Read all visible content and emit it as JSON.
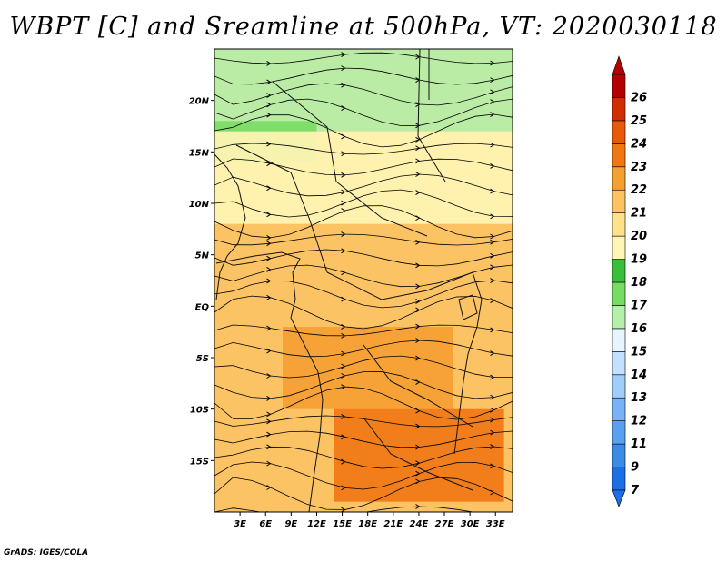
{
  "chart_data": {
    "type": "heatmap",
    "title": "WBPT [C] and Sreamline at 500hPa, VT: 2020030118",
    "variable": "WBPT [C]",
    "overlay": "Streamline",
    "level": "500hPa",
    "valid_time": "2020030118",
    "x_axis": {
      "range": [
        0,
        35
      ],
      "ticks": [
        {
          "value": 3,
          "label": "3E"
        },
        {
          "value": 6,
          "label": "6E"
        },
        {
          "value": 9,
          "label": "9E"
        },
        {
          "value": 12,
          "label": "12E"
        },
        {
          "value": 15,
          "label": "15E"
        },
        {
          "value": 18,
          "label": "18E"
        },
        {
          "value": 21,
          "label": "21E"
        },
        {
          "value": 24,
          "label": "24E"
        },
        {
          "value": 27,
          "label": "27E"
        },
        {
          "value": 30,
          "label": "30E"
        },
        {
          "value": 33,
          "label": "33E"
        }
      ]
    },
    "y_axis": {
      "range": [
        -20,
        25
      ],
      "ticks": [
        {
          "value": 20,
          "label": "20N"
        },
        {
          "value": 15,
          "label": "15N"
        },
        {
          "value": 10,
          "label": "10N"
        },
        {
          "value": 5,
          "label": "5N"
        },
        {
          "value": 0,
          "label": "EQ"
        },
        {
          "value": -5,
          "label": "5S"
        },
        {
          "value": -10,
          "label": "10S"
        },
        {
          "value": -15,
          "label": "15S"
        }
      ]
    },
    "colorbar": {
      "orientation": "vertical",
      "levels": [
        7,
        9,
        11,
        12,
        13,
        14,
        15,
        16,
        17,
        18,
        19,
        20,
        21,
        22,
        23,
        24,
        25,
        26
      ],
      "colors": [
        "#1e6ee6",
        "#3c8ce6",
        "#5aa0f0",
        "#78b4f5",
        "#a0cdfa",
        "#c3e1fc",
        "#e6f5ff",
        "#b4f0aa",
        "#78dc64",
        "#3cbe3c",
        "#fff5b4",
        "#ffe18c",
        "#fcc364",
        "#f5a032",
        "#f07814",
        "#e65a0a",
        "#d22d00",
        "#b40000"
      ]
    },
    "field_regions": [
      {
        "lon": [
          0,
          35
        ],
        "lat": [
          17,
          25
        ],
        "value": 16.5
      },
      {
        "lon": [
          0,
          12
        ],
        "lat": [
          14,
          18
        ],
        "value": 17.5
      },
      {
        "lon": [
          0,
          35
        ],
        "lat": [
          8,
          17
        ],
        "value": 19.5
      },
      {
        "lon": [
          0,
          20
        ],
        "lat": [
          -2,
          7
        ],
        "value": 21.5
      },
      {
        "lon": [
          8,
          28
        ],
        "lat": [
          -10,
          -2
        ],
        "value": 22.5
      },
      {
        "lon": [
          14,
          34
        ],
        "lat": [
          -19,
          -10
        ],
        "value": 23.5
      }
    ]
  },
  "footer": "GrADS: IGES/COLA"
}
